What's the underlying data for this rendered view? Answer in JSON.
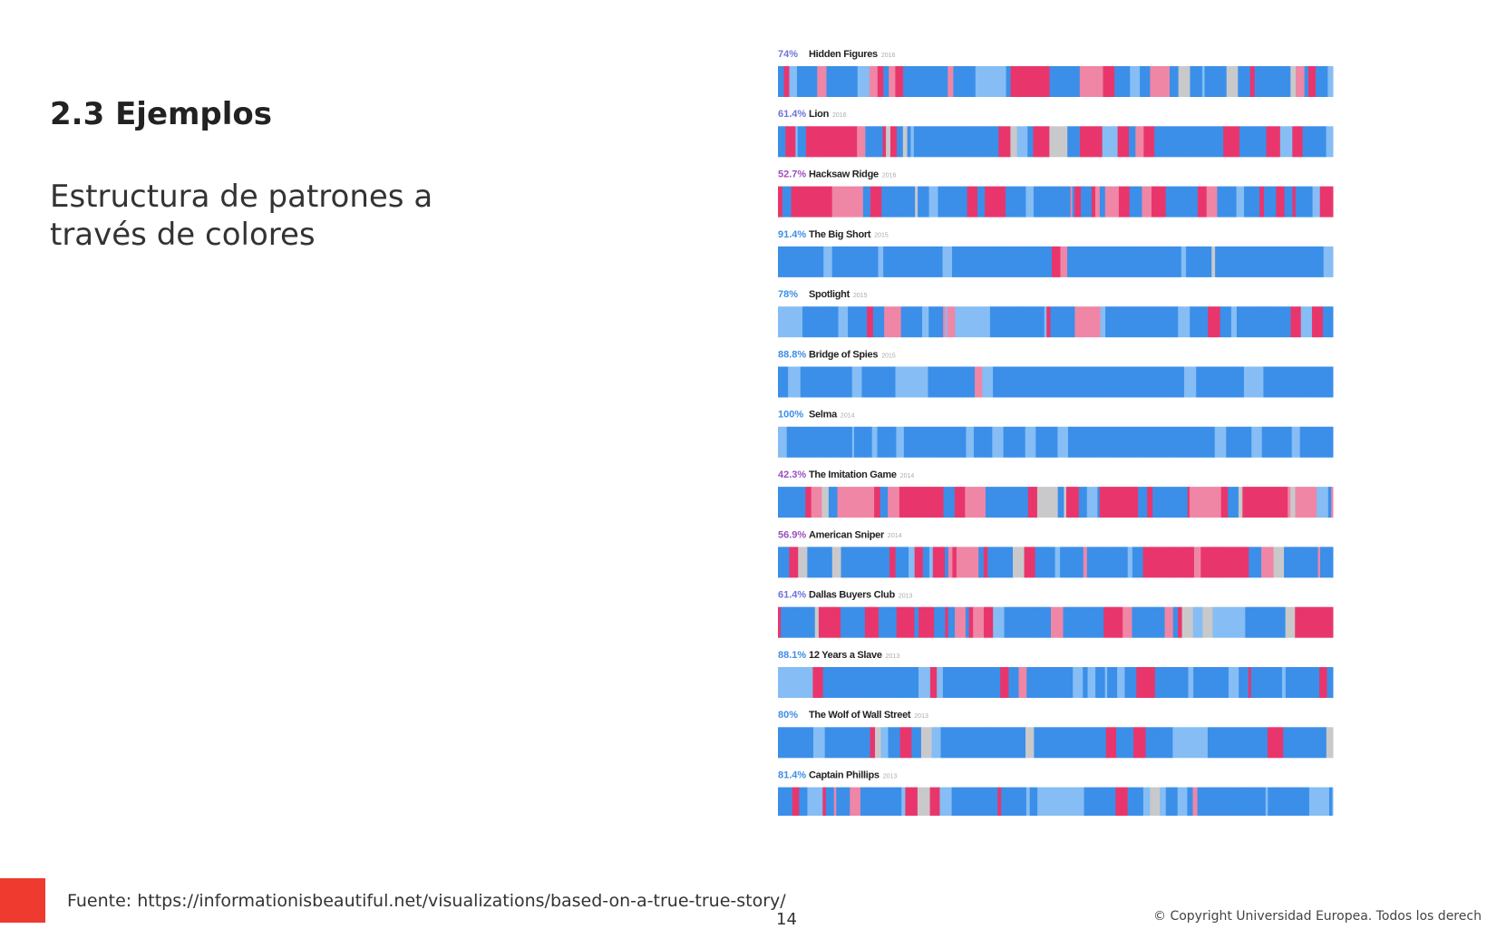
{
  "slide": {
    "title": "2.3 Ejemplos",
    "subtitle": "Estructura de patrones a través de colores",
    "films": [
      {
        "percent": "74%",
        "title": "Hidden Figures",
        "year": "2016"
      },
      {
        "percent": "61.4%",
        "title": "Lion",
        "year": "2016"
      },
      {
        "percent": "52.7%",
        "title": "Hacksaw Ridge",
        "year": "2016"
      },
      {
        "percent": "91.4%",
        "title": "The Big Short",
        "year": "2015"
      },
      {
        "percent": "78%",
        "title": "Spotlight",
        "year": "2015"
      },
      {
        "percent": "88.8%",
        "title": "Bridge of Spies",
        "year": "2015"
      },
      {
        "percent": "100%",
        "title": "Selma",
        "year": "2014"
      },
      {
        "percent": "42.3%",
        "title": "The Imitation Game",
        "year": "2014"
      },
      {
        "percent": "56.9%",
        "title": "American Sniper",
        "year": "2014"
      },
      {
        "percent": "61.4%",
        "title": "Dallas Buyers Club",
        "year": "2013"
      },
      {
        "percent": "88.1%",
        "title": "12 Years a Slave",
        "year": "2013"
      },
      {
        "percent": "80%",
        "title": "The Wolf of Wall Street",
        "year": "2013"
      },
      {
        "percent": "81.4%",
        "title": "Captain Phillips",
        "year": "2013"
      }
    ],
    "source": "Fuente: https://informationisbeautiful.net/visualizations/based-on-a-true-true-story/",
    "page_number": "14",
    "copyright": "© Copyright Universidad Europea. Todos los derech"
  }
}
